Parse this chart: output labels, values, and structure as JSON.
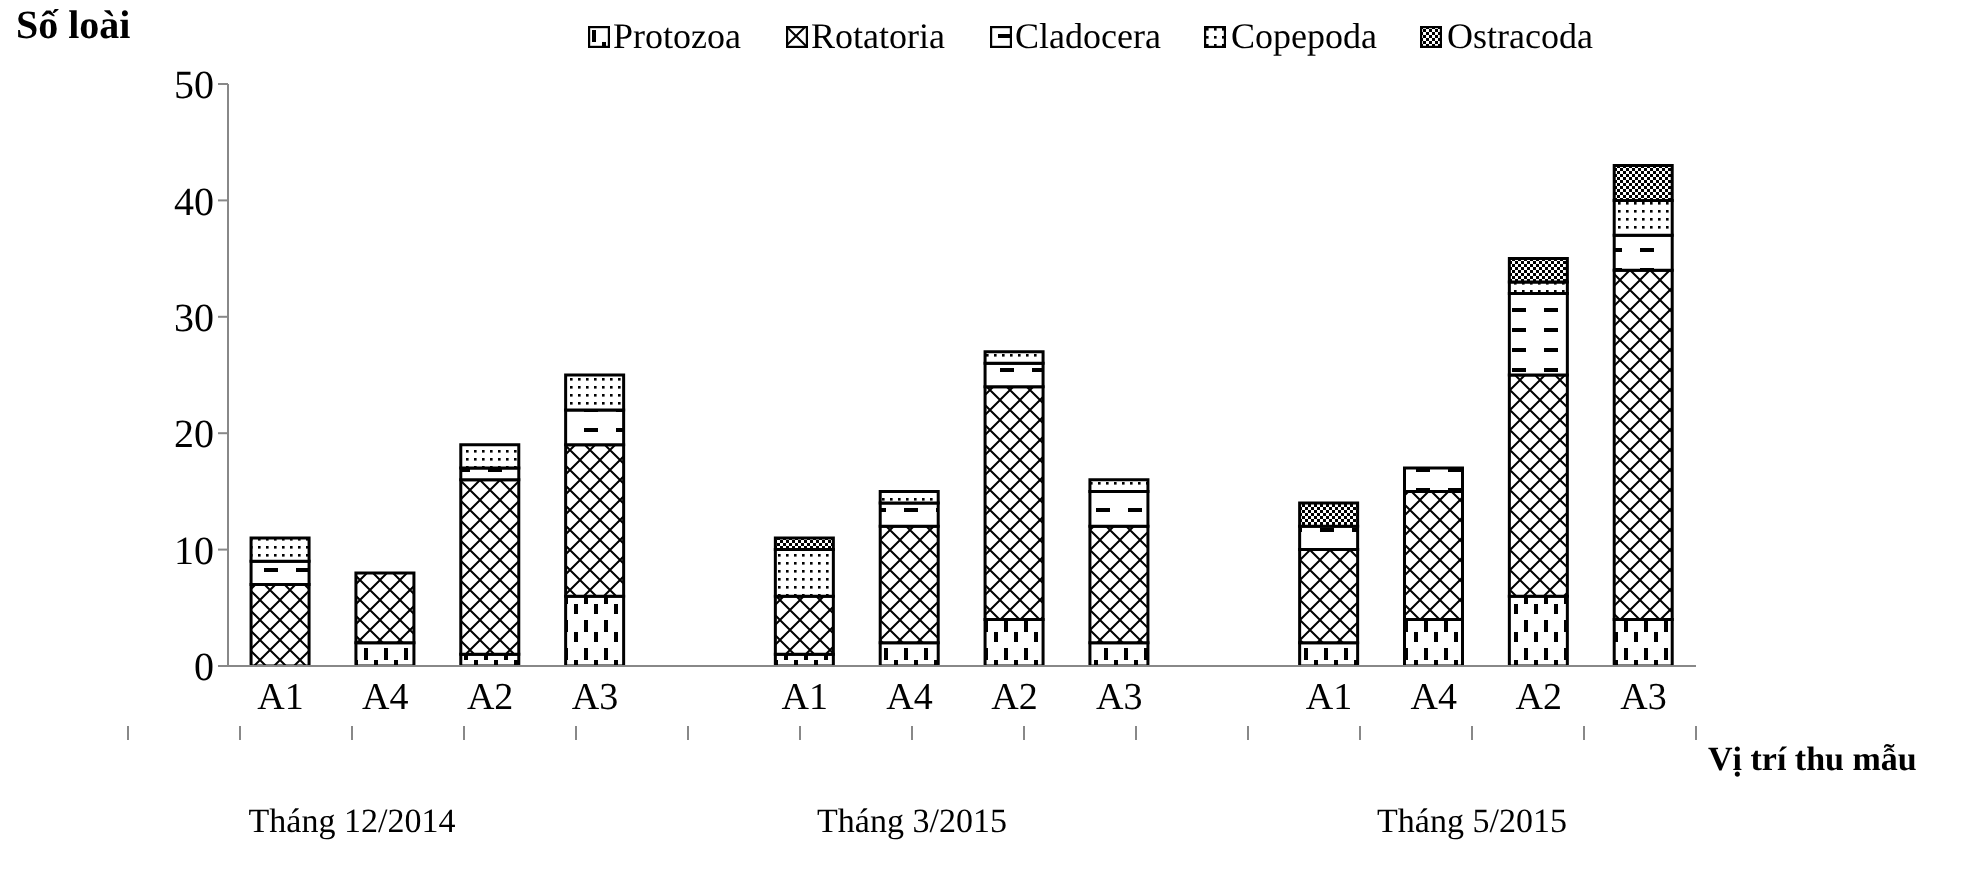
{
  "chart_data": {
    "type": "bar",
    "stacked": true,
    "ylabel": "Số loài",
    "xlabel": "Vị trí thu mẫu",
    "categories": [
      "A1",
      "A4",
      "A2",
      "A3",
      null,
      "A1",
      "A4",
      "A2",
      "A3",
      null,
      "A1",
      "A4",
      "A2",
      "A3"
    ],
    "series": [
      {
        "name": "Protozoa",
        "color": "#000000",
        "values": [
          0,
          2,
          1,
          6,
          null,
          1,
          2,
          4,
          2,
          null,
          2,
          4,
          6,
          4
        ]
      },
      {
        "name": "Rotatoria",
        "color": "#000000",
        "values": [
          7,
          6,
          15,
          13,
          null,
          5,
          10,
          20,
          10,
          null,
          8,
          11,
          19,
          30
        ]
      },
      {
        "name": "Cladocera",
        "color": "#000000",
        "values": [
          2,
          0,
          1,
          3,
          null,
          0,
          2,
          2,
          3,
          null,
          2,
          2,
          7,
          3
        ]
      },
      {
        "name": "Copepoda",
        "color": "#000000",
        "values": [
          2,
          0,
          2,
          3,
          null,
          4,
          1,
          1,
          1,
          null,
          0,
          0,
          1,
          3
        ]
      },
      {
        "name": "Ostracoda",
        "color": "#000000",
        "values": [
          0,
          0,
          0,
          0,
          null,
          1,
          0,
          0,
          0,
          null,
          2,
          0,
          2,
          3
        ]
      }
    ],
    "ylim": [
      0,
      50
    ],
    "yticks": [
      0,
      10,
      20,
      30,
      40,
      50
    ],
    "grid": false,
    "legend": "top",
    "annotations": [
      "Tháng 12/2014",
      "Tháng 3/2015",
      "Tháng 5/2015"
    ]
  }
}
